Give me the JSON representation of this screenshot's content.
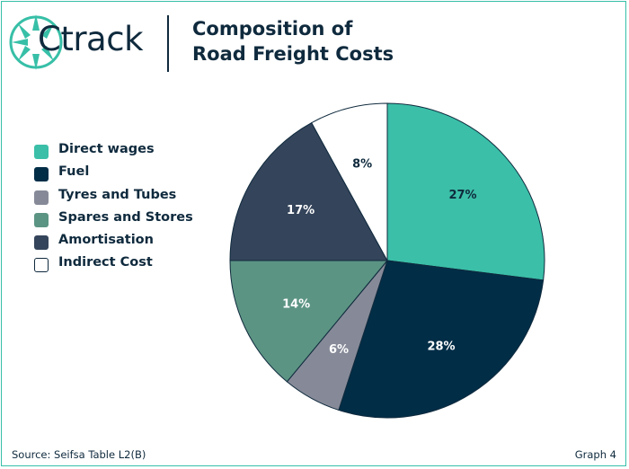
{
  "header": {
    "logo_text": "Ctrack",
    "title_line1": "Composition of",
    "title_line2": "Road Freight Costs"
  },
  "colors": {
    "accent": "#37bfa7",
    "navy": "#0f2a3d"
  },
  "chart_data": {
    "type": "pie",
    "title": "Composition of Road Freight Costs",
    "slices": [
      {
        "label": "Direct wages",
        "value": 27,
        "data_label": "27%",
        "color": "#3bbfa8",
        "text_color": "#0f2a3d"
      },
      {
        "label": "Fuel",
        "value": 28,
        "data_label": "28%",
        "color": "#022d47",
        "text_color": "#ffffff"
      },
      {
        "label": "Tyres and Tubes",
        "value": 6,
        "data_label": "6%",
        "color": "#868a98",
        "text_color": "#ffffff"
      },
      {
        "label": "Spares and Stores",
        "value": 14,
        "data_label": "14%",
        "color": "#5c9483",
        "text_color": "#ffffff"
      },
      {
        "label": "Amortisation",
        "value": 17,
        "data_label": "17%",
        "color": "#34445a",
        "text_color": "#ffffff"
      },
      {
        "label": "Indirect Cost",
        "value": 8,
        "data_label": "8%",
        "color": "#ffffff",
        "text_color": "#0f2a3d"
      }
    ],
    "legend_position": "left"
  },
  "footer": {
    "source": "Source: Seifsa Table L2(B)",
    "graph_label": "Graph 4"
  }
}
